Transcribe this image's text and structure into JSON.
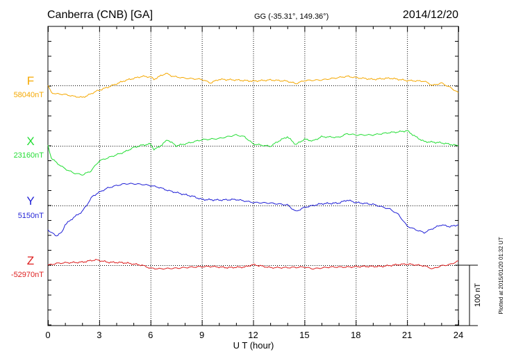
{
  "header": {
    "station": "Canberra (CNB)  [GA]",
    "coords": "GG (-35.31°, 149.36°)",
    "date": "2014/12/20"
  },
  "footer": {
    "plotted": "Plotted at 2015/01/20 01:32 UT"
  },
  "chart_data": {
    "type": "line",
    "title": "Canberra (CNB)  [GA]",
    "xlabel": "U T (hour)",
    "ylabel": "",
    "xlim": [
      0,
      24
    ],
    "x_ticks": [
      0,
      3,
      6,
      9,
      12,
      15,
      18,
      21,
      24
    ],
    "x_tick_labels": [
      "0",
      "3",
      "6",
      "9",
      "12",
      "15",
      "18",
      "21",
      "24"
    ],
    "grid": true,
    "scale_bar": {
      "value": 100,
      "label": "100 nT"
    },
    "series": [
      {
        "name": "F",
        "baseline_label": "58040nT",
        "color": "#f5a800",
        "x": [
          0,
          0.2,
          0.5,
          1,
          1.5,
          2,
          2.3,
          2.8,
          3.5,
          4.5,
          5.5,
          6,
          6.2,
          6.6,
          6.9,
          7.3,
          8,
          9,
          9.5,
          10,
          11,
          12,
          13,
          14,
          14.5,
          15,
          16,
          17,
          17.5,
          18,
          19,
          20,
          20.5,
          21,
          22,
          22.5,
          23,
          23.5,
          24
        ],
        "values": [
          0,
          -12,
          -14,
          -15,
          -18,
          -20,
          -17,
          -10,
          -3,
          8,
          15,
          14,
          10,
          16,
          20,
          15,
          12,
          10,
          4,
          10,
          9,
          7,
          9,
          7,
          3,
          8,
          9,
          13,
          15,
          13,
          10,
          12,
          10,
          8,
          7,
          0,
          4,
          -3,
          -12
        ]
      },
      {
        "name": "X",
        "baseline_label": "23160nT",
        "color": "#22dd33",
        "x": [
          0,
          0.2,
          0.5,
          1,
          1.5,
          2,
          2.2,
          2.5,
          3,
          3.5,
          4,
          4.5,
          5,
          5.5,
          6,
          6.2,
          6.5,
          7,
          7.5,
          8,
          9,
          10,
          11,
          11.5,
          12,
          13,
          13.5,
          14,
          14.5,
          15,
          15.5,
          16,
          17,
          17.5,
          18,
          19,
          20,
          20.5,
          21,
          21.5,
          22,
          23,
          24
        ],
        "values": [
          0,
          -20,
          -28,
          -38,
          -45,
          -48,
          -46,
          -42,
          -25,
          -20,
          -15,
          -10,
          -3,
          1,
          3,
          -6,
          -2,
          10,
          0,
          3,
          10,
          12,
          18,
          15,
          3,
          -1,
          8,
          15,
          2,
          11,
          8,
          15,
          14,
          20,
          18,
          18,
          22,
          23,
          25,
          15,
          7,
          5,
          0
        ]
      },
      {
        "name": "Y",
        "baseline_label": "5150nT",
        "color": "#1f1fd6",
        "x": [
          0,
          0.2,
          0.5,
          0.8,
          1,
          1.5,
          2,
          2.3,
          2.6,
          3,
          3.5,
          4,
          4.5,
          5,
          5.5,
          6,
          6.5,
          7,
          8,
          8.5,
          9,
          10,
          11,
          12,
          13,
          14,
          14.5,
          15,
          16,
          17,
          17.5,
          18,
          19,
          20,
          20.5,
          21,
          21.5,
          22,
          22.5,
          23,
          23.5,
          24
        ],
        "values": [
          -40,
          -45,
          -50,
          -45,
          -32,
          -20,
          -10,
          2,
          15,
          22,
          29,
          33,
          36,
          36,
          35,
          33,
          30,
          25,
          18,
          15,
          10,
          9,
          10,
          5,
          4,
          1,
          -10,
          -3,
          3,
          4,
          9,
          5,
          2,
          -6,
          -15,
          -34,
          -40,
          -45,
          -38,
          -32,
          -35,
          -32
        ]
      },
      {
        "name": "Z",
        "baseline_label": "-52970nT",
        "color": "#dd1c1c",
        "x": [
          0,
          0.5,
          1,
          2,
          2.8,
          3.5,
          4.5,
          5.5,
          6,
          6.5,
          7.5,
          8.5,
          9.5,
          10.5,
          11.5,
          12,
          13,
          14,
          15,
          15.5,
          16.5,
          17.5,
          18.5,
          19.5,
          20.5,
          21,
          22,
          22.5,
          23,
          23.5,
          24
        ],
        "values": [
          0,
          3,
          4,
          5,
          9,
          5,
          4,
          0,
          -5,
          -6,
          -5,
          -3,
          -2,
          -4,
          -3,
          1,
          -4,
          -4,
          -3,
          -6,
          -3,
          -3,
          -2,
          -2,
          1,
          2,
          -1,
          -6,
          -1,
          1,
          7
        ]
      }
    ]
  }
}
